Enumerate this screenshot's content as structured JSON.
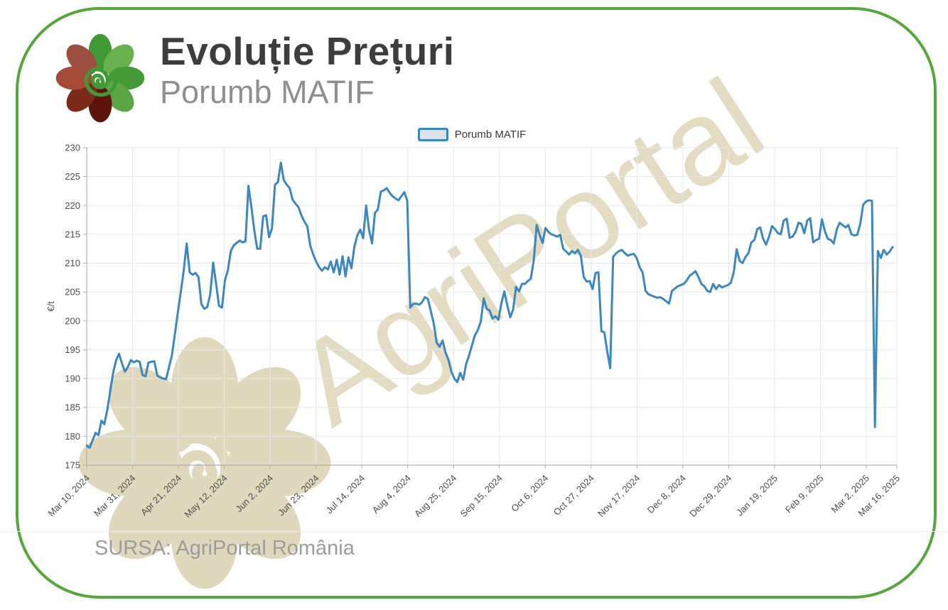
{
  "header": {
    "title": "Evoluție Prețuri",
    "subtitle": "Porumb MATIF"
  },
  "legend": {
    "label": "Porumb MATIF"
  },
  "watermark": {
    "text": "AgriPortal"
  },
  "footer": {
    "source": "SURSA: AgriPortal România"
  },
  "colors": {
    "accent_green": "#55a73c",
    "line_blue": "#3d87bf",
    "watermark_beige": "#e3dcc2",
    "grid": "#e7e7e7",
    "axis": "#b0b0b0",
    "legend_swatch_fill": "#dbe2e8"
  },
  "chart_data": {
    "type": "line",
    "title": "",
    "xlabel": "",
    "ylabel": "€/t",
    "ylim": [
      175,
      230
    ],
    "grid": true,
    "legend_position": "top",
    "y_ticks": [
      175,
      180,
      185,
      190,
      195,
      200,
      205,
      210,
      215,
      220,
      225,
      230
    ],
    "x_tick_labels": [
      "Mar 10, 2024",
      "Mar 31, 2024",
      "Apr 21, 2024",
      "May 12, 2024",
      "Jun 2, 2024",
      "Jun 23, 2024",
      "Jul 14, 2024",
      "Aug 4, 2024",
      "Aug 25, 2024",
      "Sep 15, 2024",
      "Oct 6, 2024",
      "Oct 27, 2024",
      "Nov 17, 2024",
      "Dec 8, 2024",
      "Dec 29, 2024",
      "Jan 19, 2025",
      "Feb 9, 2025",
      "Mar 2, 2025",
      "Mar 16, 2025"
    ],
    "series": [
      {
        "name": "Porumb MATIF",
        "color": "#3d87bf",
        "values": [
          178.4,
          178.0,
          179.3,
          180.6,
          180.2,
          182.7,
          182.1,
          184.6,
          187.8,
          191.0,
          193.2,
          194.3,
          192.6,
          191.2,
          192.0,
          193.2,
          192.8,
          193.1,
          192.9,
          190.6,
          190.4,
          192.8,
          192.9,
          193.0,
          190.5,
          190.2,
          190.0,
          189.9,
          192.0,
          194.1,
          197.8,
          201.5,
          205.0,
          208.8,
          213.4,
          208.4,
          208.0,
          208.3,
          207.6,
          202.9,
          202.1,
          202.4,
          204.6,
          210.1,
          206.4,
          202.6,
          202.3,
          207.0,
          208.8,
          212.1,
          213.1,
          213.5,
          213.9,
          213.6,
          213.8,
          223.4,
          219.7,
          215.6,
          212.5,
          212.5,
          218.1,
          218.3,
          214.5,
          216.0,
          223.6,
          224.0,
          227.4,
          224.4,
          223.6,
          223.0,
          221.0,
          220.3,
          219.7,
          218.3,
          217.2,
          216.4,
          213.1,
          211.5,
          210.3,
          209.3,
          208.7,
          209.3,
          208.9,
          210.3,
          208.4,
          210.6,
          208.0,
          211.2,
          207.7,
          211.0,
          209.1,
          212.8,
          214.8,
          215.8,
          214.3,
          220.0,
          215.8,
          213.4,
          218.7,
          219.3,
          222.4,
          222.6,
          223.0,
          222.2,
          221.6,
          221.2,
          220.9,
          221.6,
          222.3,
          220.8,
          202.3,
          202.9,
          203.0,
          202.8,
          203.2,
          204.1,
          203.8,
          201.7,
          199.5,
          196.2,
          195.5,
          196.6,
          194.5,
          193.2,
          191.2,
          190.0,
          189.4,
          191.0,
          189.8,
          192.5,
          194.0,
          195.8,
          197.5,
          198.4,
          199.9,
          203.9,
          202.1,
          201.8,
          200.4,
          200.8,
          200.2,
          203.1,
          205.1,
          202.7,
          200.6,
          202.0,
          205.9,
          205.1,
          206.4,
          206.4,
          206.9,
          207.3,
          210.5,
          216.6,
          214.9,
          213.5,
          216.1,
          215.4,
          215.0,
          214.8,
          214.6,
          214.9,
          212.5,
          212.0,
          211.5,
          212.1,
          211.7,
          212.3,
          211.3,
          207.6,
          206.8,
          206.9,
          205.5,
          208.3,
          208.4,
          198.2,
          198.0,
          194.7,
          191.8,
          211.1,
          211.7,
          212.1,
          212.3,
          211.7,
          211.3,
          211.5,
          211.6,
          210.9,
          209.3,
          208.4,
          205.2,
          204.6,
          204.4,
          204.2,
          204.0,
          204.1,
          203.8,
          203.4,
          203.0,
          205.2,
          205.6,
          206.0,
          206.2,
          206.4,
          207.0,
          207.8,
          208.2,
          208.6,
          207.6,
          206.4,
          206.0,
          205.2,
          205.0,
          206.4,
          205.5,
          206.2,
          205.8,
          206.0,
          206.2,
          206.6,
          208.4,
          212.4,
          210.4,
          210.0,
          211.1,
          211.7,
          213.6,
          214.0,
          215.9,
          216.2,
          214.2,
          213.2,
          214.6,
          216.4,
          215.9,
          215.2,
          215.0,
          217.4,
          217.7,
          214.4,
          214.6,
          215.4,
          217.0,
          216.8,
          215.2,
          217.4,
          217.8,
          213.6,
          214.0,
          214.2,
          217.6,
          215.5,
          214.2,
          214.0,
          213.4,
          215.8,
          217.0,
          216.6,
          216.2,
          216.6,
          215.0,
          214.8,
          214.9,
          216.8,
          220.1,
          220.7,
          220.9,
          220.8,
          181.6,
          212.1,
          210.9,
          212.3,
          211.5,
          212.0,
          212.8
        ]
      }
    ]
  }
}
